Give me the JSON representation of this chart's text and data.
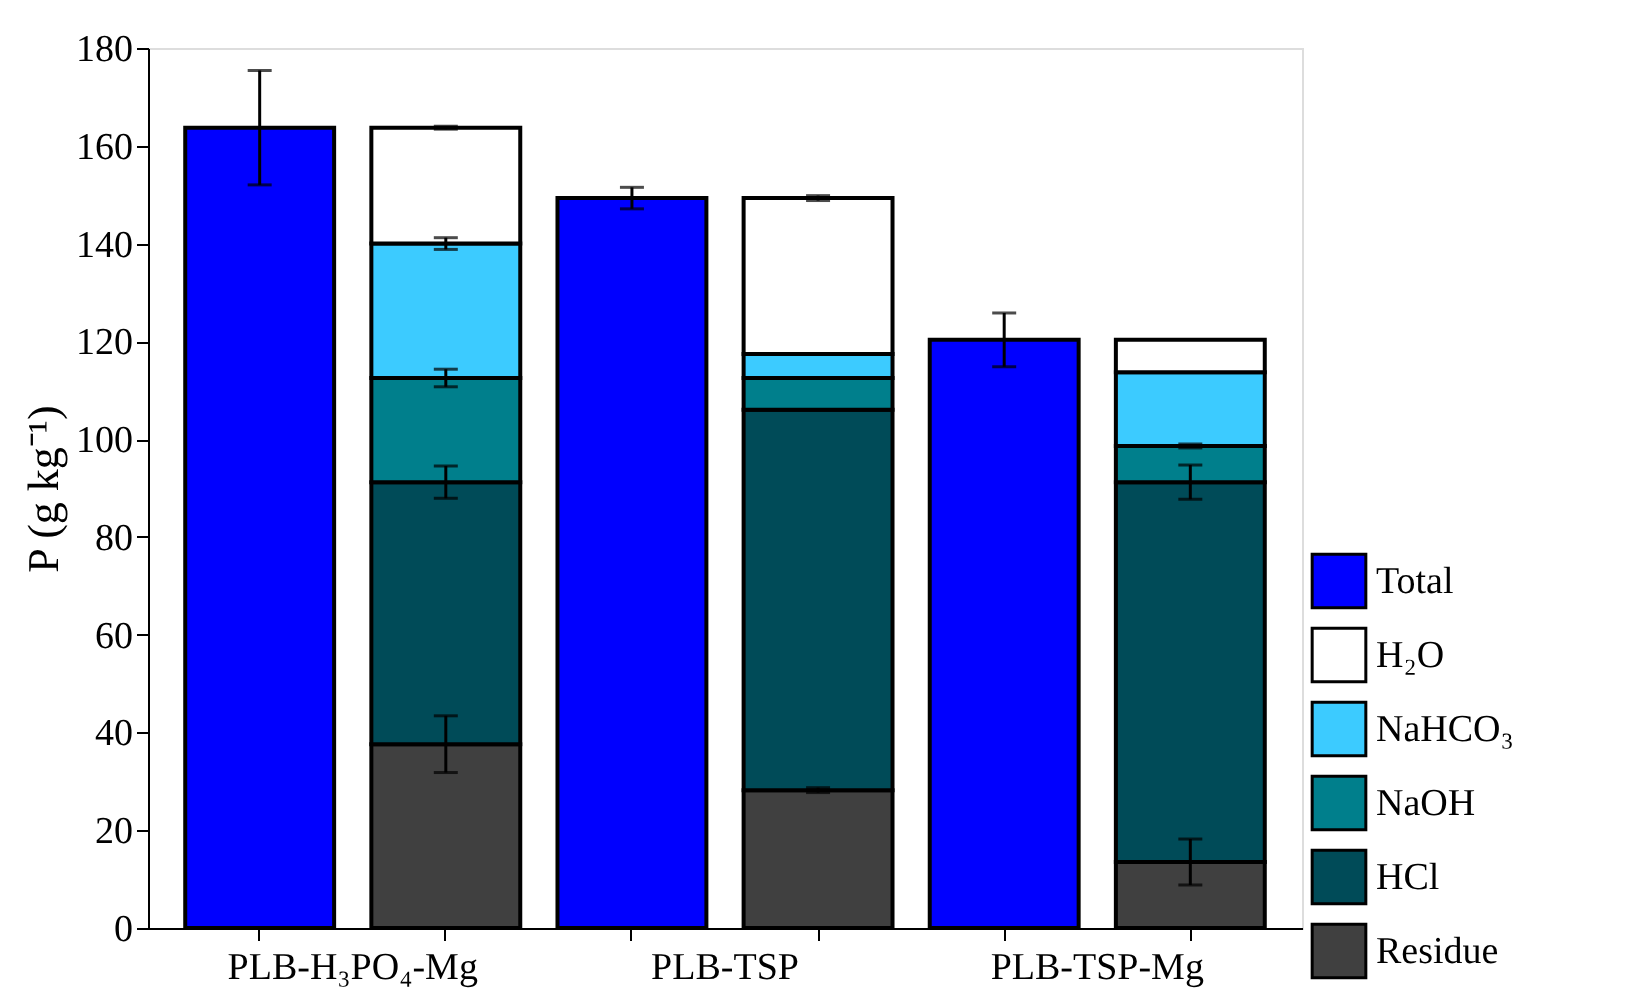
{
  "chart_data": {
    "type": "bar",
    "stacked": true,
    "ylabel": "P (g kg⁻¹)",
    "categories": [
      "PLB-H₃PO₄-Mg",
      null,
      "PLB-TSP",
      null,
      "PLB-TSP-Mg",
      null
    ],
    "series": [
      {
        "name": "Total",
        "color": "#0000ff",
        "values": [
          163.7,
          null,
          149.3,
          null,
          120.3,
          null
        ],
        "errors": [
          11.7,
          null,
          2.2,
          null,
          5.5,
          null
        ]
      },
      {
        "name": "Residue",
        "color": "#404040",
        "values": [
          null,
          37.6,
          null,
          28.2,
          null,
          13.5
        ],
        "errors": [
          null,
          5.8,
          null,
          0.5,
          null,
          4.7
        ]
      },
      {
        "name": "HCl",
        "color": "#004b58",
        "values": [
          null,
          53.6,
          null,
          77.8,
          null,
          77.7
        ],
        "errors": [
          null,
          3.3,
          null,
          null,
          null,
          3.5
        ]
      },
      {
        "name": "NaOH",
        "color": "#007f8c",
        "values": [
          null,
          21.3,
          null,
          6.5,
          null,
          7.4
        ],
        "errors": [
          null,
          1.8,
          null,
          null,
          null,
          0.4
        ]
      },
      {
        "name": "NaHCO₃",
        "color": "#3ccbff",
        "values": [
          null,
          27.5,
          null,
          4.9,
          null,
          15.1
        ],
        "errors": [
          null,
          1.2,
          null,
          null,
          null,
          null
        ]
      },
      {
        "name": "H₂O",
        "color": "#ffffff",
        "values": [
          null,
          23.7,
          null,
          31.9,
          null,
          6.6
        ],
        "errors": [
          null,
          0.3,
          null,
          0.5,
          null,
          null
        ]
      }
    ],
    "ylim": [
      0,
      180
    ],
    "yticks": [
      0,
      20,
      40,
      60,
      80,
      100,
      120,
      140,
      160,
      180
    ],
    "grid": false,
    "legend": "right"
  }
}
